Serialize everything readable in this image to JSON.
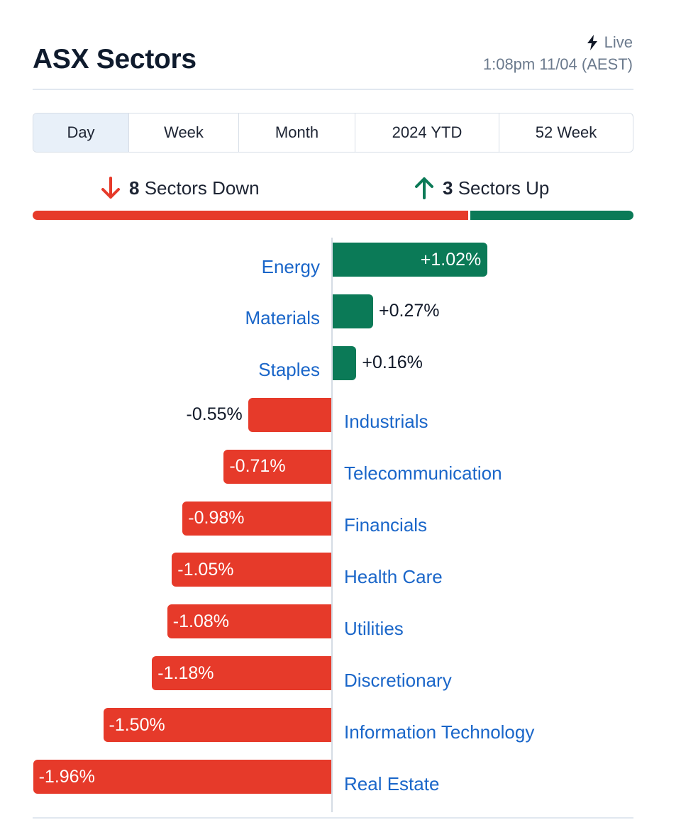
{
  "header": {
    "title": "ASX Sectors",
    "live_label": "Live",
    "timestamp": "1:08pm 11/04 (AEST)",
    "bolt_icon": "lightning-bolt-icon"
  },
  "tabs": [
    {
      "label": "Day",
      "active": true
    },
    {
      "label": "Week",
      "active": false
    },
    {
      "label": "Month",
      "active": false
    },
    {
      "label": "2024 YTD",
      "active": false
    },
    {
      "label": "52 Week",
      "active": false
    }
  ],
  "summary": {
    "down_count": "8",
    "down_label": "Sectors Down",
    "up_count": "3",
    "up_label": "Sectors Up",
    "down_color": "#e63a2a",
    "up_color": "#0b7a57"
  },
  "chart_data": {
    "type": "bar",
    "orientation": "horizontal",
    "categories": [
      "Energy",
      "Materials",
      "Staples",
      "Industrials",
      "Telecommunication",
      "Financials",
      "Health Care",
      "Utilities",
      "Discretionary",
      "Information Technology",
      "Real Estate"
    ],
    "values": [
      1.02,
      0.27,
      0.16,
      -0.55,
      -0.71,
      -0.98,
      -1.05,
      -1.08,
      -1.18,
      -1.5,
      -1.96
    ],
    "value_labels": [
      "+1.02%",
      "+0.27%",
      "+0.16%",
      "-0.55%",
      "-0.71%",
      "-0.98%",
      "-1.05%",
      "-1.08%",
      "-1.18%",
      "-1.50%",
      "-1.96%"
    ],
    "positive_color": "#0b7a57",
    "negative_color": "#e63a2a",
    "label_color": "#1a66c9"
  }
}
